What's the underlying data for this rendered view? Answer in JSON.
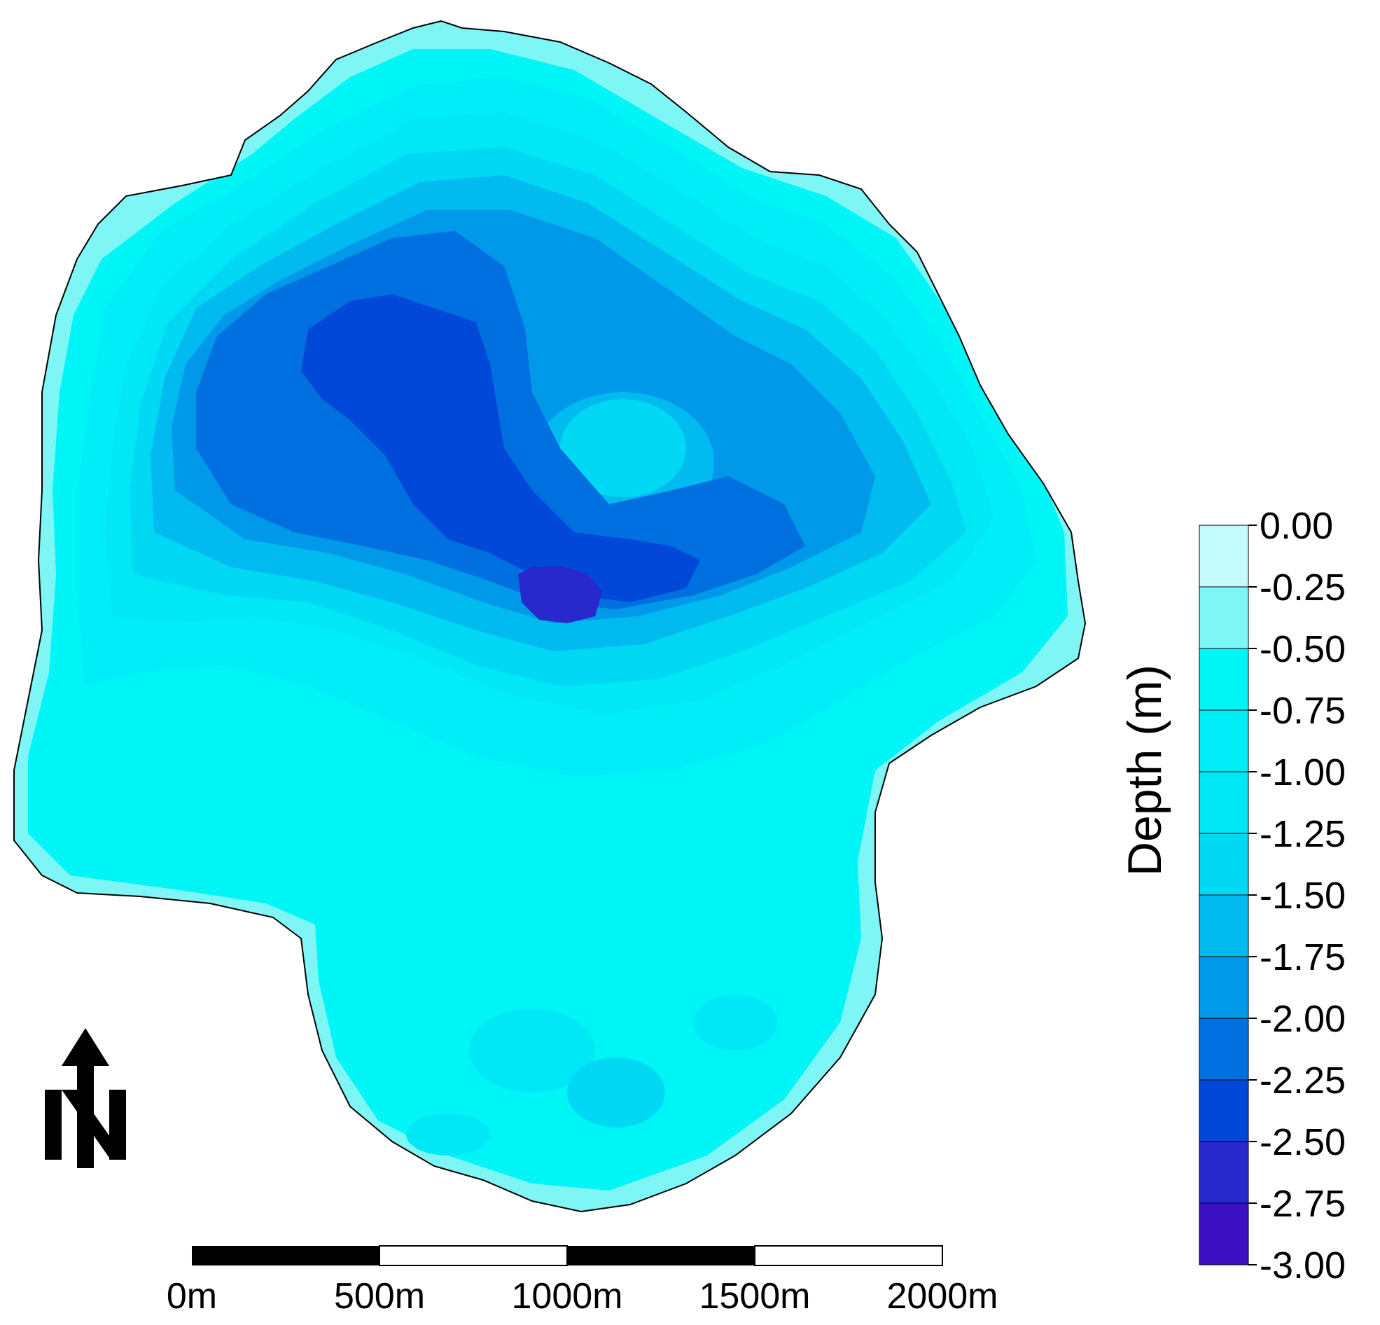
{
  "legend": {
    "title": "Depth (m)",
    "ticks": [
      "0.00",
      "-0.25",
      "-0.50",
      "-0.75",
      "-1.00",
      "-1.25",
      "-1.50",
      "-1.75",
      "-2.00",
      "-2.25",
      "-2.50",
      "-2.75",
      "-3.00"
    ],
    "colors": [
      "#c4fafa",
      "#7ef6f6",
      "#00f6f6",
      "#00eef8",
      "#00e8f6",
      "#00d8f4",
      "#00baf0",
      "#0098e8",
      "#0070e0",
      "#0048d8",
      "#2828cc",
      "#3a10c0"
    ]
  },
  "scale_bar": {
    "labels": [
      "0m",
      "500m",
      "1000m",
      "1500m",
      "2000m"
    ]
  },
  "north_arrow": {
    "label": "N",
    "icon": "north-arrow-icon"
  },
  "colors": {
    "depth_0_25": "#7ef6f6",
    "depth_0_50": "#00f6f6",
    "depth_0_75": "#00eef8",
    "depth_1_00": "#00e8f6",
    "depth_1_25": "#00d8f4",
    "depth_1_50": "#00baf0",
    "depth_1_75": "#0098e8",
    "depth_2_00": "#0070e0",
    "depth_2_25": "#0048d8",
    "depth_2_50": "#2828cc"
  }
}
